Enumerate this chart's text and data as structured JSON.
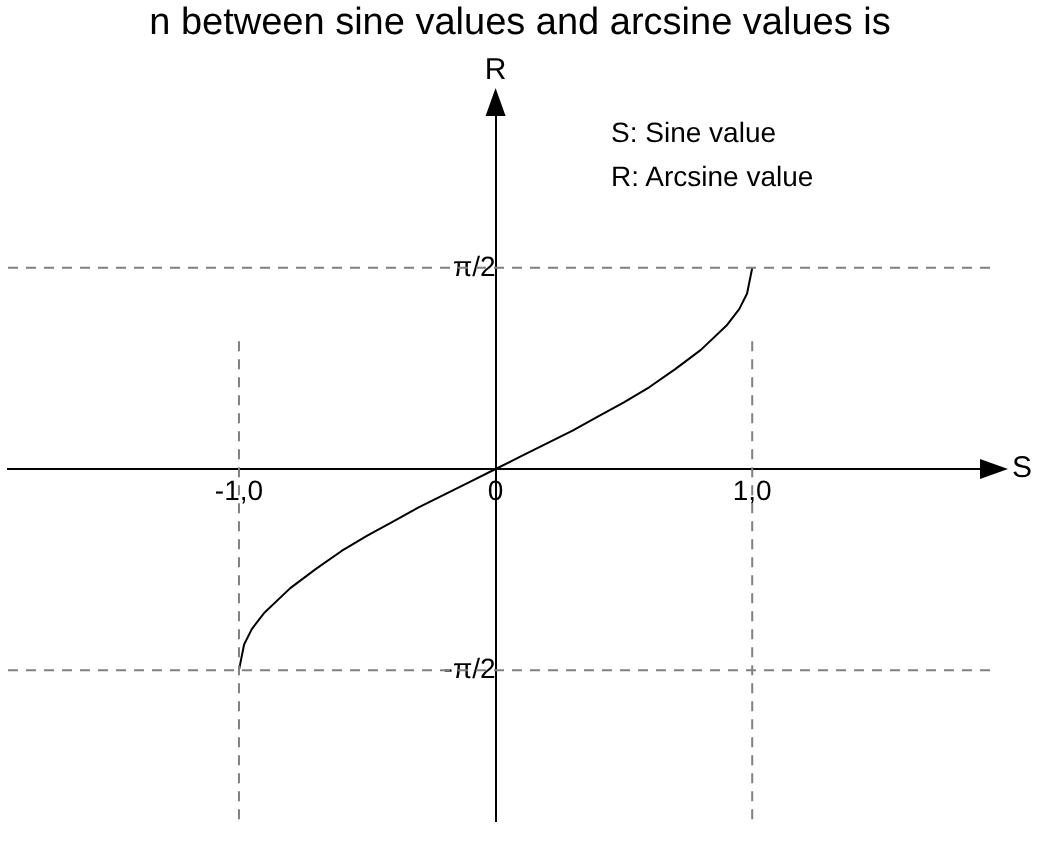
{
  "chart_data": {
    "type": "line",
    "title": "n between sine values and arcsine values is",
    "xlabel": "S",
    "ylabel": "R",
    "annotations": [
      "S: Sine value",
      "R: Arcsine value"
    ],
    "x": [
      -1,
      -0.98,
      -0.95,
      -0.9,
      -0.8,
      -0.7,
      -0.6,
      -0.5,
      -0.4,
      -0.3,
      -0.2,
      -0.1,
      0,
      0.1,
      0.2,
      0.3,
      0.4,
      0.5,
      0.6,
      0.7,
      0.8,
      0.9,
      0.95,
      0.98,
      1
    ],
    "series": [
      {
        "color": "#000000",
        "values": [
          -1.57,
          -1.37,
          -1.25,
          -1.12,
          -0.93,
          -0.78,
          -0.64,
          -0.52,
          -0.41,
          -0.3,
          -0.2,
          -0.1,
          0,
          0.1,
          0.2,
          0.3,
          0.41,
          0.52,
          0.64,
          0.78,
          0.93,
          1.12,
          1.25,
          1.37,
          1.57
        ]
      }
    ],
    "xlim": [
      -1.9,
      1.95
    ],
    "ylim": [
      -2.75,
      2.85
    ],
    "xticks": [
      {
        "value": -1,
        "label": "-1,0"
      },
      {
        "value": 0,
        "label": "0"
      },
      {
        "value": 1,
        "label": "1,0"
      }
    ],
    "yticks": [
      {
        "value": 1.5708,
        "label": "π/2"
      },
      {
        "value": -1.5708,
        "label": "-π/2"
      }
    ],
    "ref_lines": [
      {
        "axis": "x",
        "value": -1,
        "color": "#808080",
        "line_style": "dashed"
      },
      {
        "axis": "x",
        "value": 1,
        "color": "#808080",
        "line_style": "dashed"
      },
      {
        "axis": "y",
        "value": 1.5708,
        "color": "#808080",
        "line_style": "dashed"
      },
      {
        "axis": "y",
        "value": -1.5708,
        "color": "#808080",
        "line_style": "dashed"
      }
    ],
    "grid": false,
    "legend": false,
    "marker": "none",
    "line_style": "solid"
  }
}
